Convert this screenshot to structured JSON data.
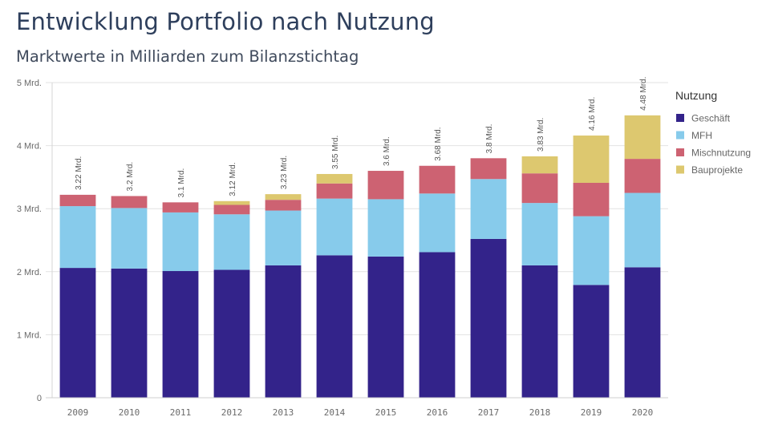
{
  "header": {
    "title": "Entwicklung Portfolio nach Nutzung",
    "subtitle": "Marktwerte in Milliarden zum Bilanzstichtag"
  },
  "chart_data": {
    "type": "bar",
    "stacked": true,
    "title": "Entwicklung Portfolio nach Nutzung",
    "subtitle": "Marktwerte in Milliarden zum Bilanzstichtag",
    "xlabel": "",
    "ylabel": "",
    "ylim": [
      0,
      5
    ],
    "yticks": [
      0,
      1,
      2,
      3,
      4,
      5
    ],
    "ytick_labels": [
      "0",
      "1 Mrd.",
      "2 Mrd.",
      "3 Mrd.",
      "4 Mrd.",
      "5 Mrd."
    ],
    "grid": true,
    "categories": [
      "2009",
      "2010",
      "2011",
      "2012",
      "2013",
      "2014",
      "2015",
      "2016",
      "2017",
      "2018",
      "2019",
      "2020"
    ],
    "series": [
      {
        "name": "Geschäft",
        "color": "#33238a",
        "values": [
          2.06,
          2.05,
          2.01,
          2.03,
          2.1,
          2.26,
          2.24,
          2.31,
          2.52,
          2.1,
          1.79,
          2.07
        ]
      },
      {
        "name": "MFH",
        "color": "#87cbeb",
        "values": [
          0.98,
          0.96,
          0.93,
          0.88,
          0.87,
          0.9,
          0.91,
          0.93,
          0.95,
          0.99,
          1.09,
          1.18
        ]
      },
      {
        "name": "Mischnutzung",
        "color": "#cd6272",
        "values": [
          0.18,
          0.19,
          0.16,
          0.15,
          0.17,
          0.24,
          0.45,
          0.44,
          0.33,
          0.47,
          0.53,
          0.54
        ]
      },
      {
        "name": "Bauprojekte",
        "color": "#ddc86f",
        "values": [
          0,
          0,
          0,
          0.06,
          0.09,
          0.15,
          0,
          0,
          0,
          0.27,
          0.75,
          0.69
        ]
      }
    ],
    "totals": [
      3.22,
      3.2,
      3.1,
      3.12,
      3.23,
      3.55,
      3.6,
      3.68,
      3.8,
      3.83,
      4.16,
      4.48
    ],
    "total_labels": [
      "3.22 Mrd.",
      "3.2 Mrd.",
      "3.1 Mrd.",
      "3.12 Mrd.",
      "3.23 Mrd.",
      "3.55 Mrd.",
      "3.6 Mrd.",
      "3.68 Mrd.",
      "3.8 Mrd.",
      "3.83 Mrd.",
      "4.16 Mrd.",
      "4.48 Mrd."
    ],
    "legend": {
      "title": "Nutzung",
      "position": "right"
    }
  }
}
